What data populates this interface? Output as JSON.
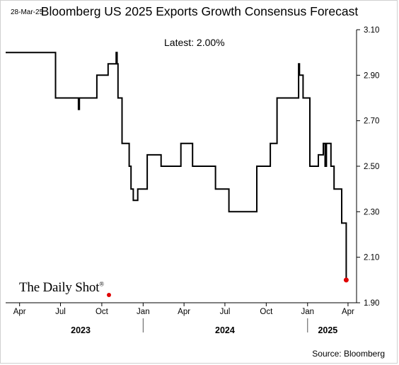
{
  "date_stamp": "28-Mar-25",
  "logo_text": "The Daily Shot",
  "logo_mark": "®",
  "source": "Source: Bloomberg",
  "colors": {
    "line": "#000000",
    "marker": "#e00000",
    "axis": "#000000"
  },
  "chart_data": {
    "type": "line",
    "title": "Bloomberg US 2025 Exports Growth Consensus Forecast",
    "annotation": "Latest:  2.00%",
    "xlabel": "",
    "ylabel": "",
    "xlim": [
      "2023-03-01",
      "2025-04-20"
    ],
    "ylim": [
      1.9,
      3.1
    ],
    "yticks": [
      1.9,
      2.1,
      2.3,
      2.5,
      2.7,
      2.9,
      3.1
    ],
    "ytick_labels": [
      "1.90",
      "2.10",
      "2.30",
      "2.50",
      "2.70",
      "2.90",
      "3.10"
    ],
    "xticks": [
      {
        "date": "2023-04-01",
        "label": "Apr"
      },
      {
        "date": "2023-07-01",
        "label": "Jul"
      },
      {
        "date": "2023-10-01",
        "label": "Oct"
      },
      {
        "date": "2024-01-01",
        "label": "Jan"
      },
      {
        "date": "2024-04-01",
        "label": "Apr"
      },
      {
        "date": "2024-07-01",
        "label": "Jul"
      },
      {
        "date": "2024-10-01",
        "label": "Oct"
      },
      {
        "date": "2025-01-01",
        "label": "Jan"
      },
      {
        "date": "2025-04-01",
        "label": "Apr"
      }
    ],
    "years": [
      {
        "date": "2023-08-15",
        "label": "2023"
      },
      {
        "date": "2024-07-01",
        "label": "2024"
      },
      {
        "date": "2025-02-15",
        "label": "2025"
      }
    ],
    "year_separators": [
      "2024-01-01",
      "2025-01-01"
    ],
    "grid": false,
    "series": [
      {
        "step": true,
        "points": [
          [
            "2023-03-01",
            3.0
          ],
          [
            "2023-06-20",
            2.8
          ],
          [
            "2023-08-10",
            2.75
          ],
          [
            "2023-08-12",
            2.8
          ],
          [
            "2023-09-20",
            2.9
          ],
          [
            "2023-10-15",
            2.95
          ],
          [
            "2023-11-02",
            3.0
          ],
          [
            "2023-11-04",
            2.95
          ],
          [
            "2023-11-06",
            2.8
          ],
          [
            "2023-11-15",
            2.6
          ],
          [
            "2023-12-01",
            2.5
          ],
          [
            "2023-12-05",
            2.4
          ],
          [
            "2023-12-10",
            2.35
          ],
          [
            "2023-12-20",
            2.4
          ],
          [
            "2024-01-10",
            2.55
          ],
          [
            "2024-02-10",
            2.5
          ],
          [
            "2024-03-25",
            2.6
          ],
          [
            "2024-04-20",
            2.5
          ],
          [
            "2024-06-10",
            2.4
          ],
          [
            "2024-07-10",
            2.3
          ],
          [
            "2024-09-10",
            2.5
          ],
          [
            "2024-10-10",
            2.6
          ],
          [
            "2024-10-25",
            2.8
          ],
          [
            "2024-12-12",
            2.95
          ],
          [
            "2024-12-14",
            2.9
          ],
          [
            "2024-12-22",
            2.8
          ],
          [
            "2025-01-06",
            2.5
          ],
          [
            "2025-01-25",
            2.55
          ],
          [
            "2025-02-05",
            2.6
          ],
          [
            "2025-02-09",
            2.5
          ],
          [
            "2025-02-12",
            2.6
          ],
          [
            "2025-02-22",
            2.5
          ],
          [
            "2025-03-01",
            2.4
          ],
          [
            "2025-03-18",
            2.25
          ],
          [
            "2025-03-28",
            2.0
          ]
        ]
      }
    ],
    "latest_point": [
      "2025-03-28",
      2.0
    ]
  }
}
